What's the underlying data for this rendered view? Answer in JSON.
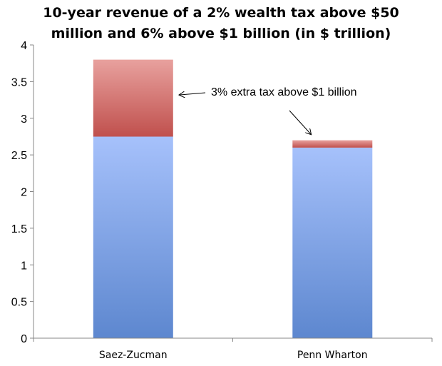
{
  "chart_data": {
    "type": "bar",
    "stacked": true,
    "title_lines": [
      "10-year revenue of a 2% wealth tax above $50",
      "million and 6% above $1 billion (in $ trillion)"
    ],
    "categories": [
      "Saez-Zucman",
      "Penn Wharton"
    ],
    "series": [
      {
        "values": [
          2.75,
          2.6
        ],
        "color_top": "#a6c1fb",
        "color_bottom": "#5d87cf"
      },
      {
        "values": [
          1.05,
          0.1
        ],
        "color_top": "#e8a19e",
        "color_bottom": "#c0504d"
      }
    ],
    "ylim": [
      0,
      4
    ],
    "yticks": [
      "0",
      "0.5",
      "1",
      "1.5",
      "2",
      "2.5",
      "3",
      "3.5",
      "4"
    ],
    "grid": false,
    "annotation": {
      "text": "3% extra tax above $1 billion"
    }
  }
}
